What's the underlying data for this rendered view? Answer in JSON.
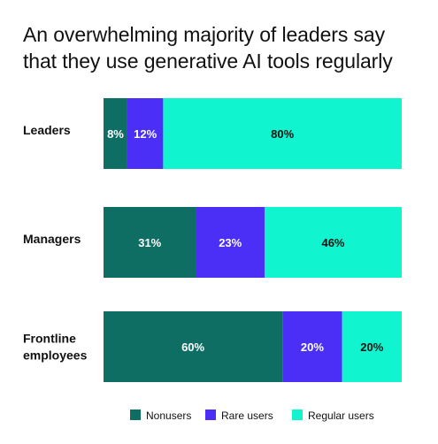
{
  "chart_data": {
    "type": "bar",
    "orientation": "horizontal",
    "stacked": true,
    "title": "An overwhelming majority of leaders say that they use generative AI tools regularly",
    "categories": [
      [
        "Leaders"
      ],
      [
        "Managers"
      ],
      [
        "Frontline",
        "employees"
      ]
    ],
    "series": [
      {
        "name": "Nonusers",
        "color": "#0f6e64",
        "label_color": "#ffffff",
        "values": [
          8,
          31,
          60
        ],
        "labels": [
          "8%",
          "31%",
          "60%"
        ]
      },
      {
        "name": "Rare users",
        "color": "#4b2ff7",
        "label_color": "#ffffff",
        "values": [
          12,
          23,
          20
        ],
        "labels": [
          "12%",
          "23%",
          "20%"
        ]
      },
      {
        "name": "Regular users",
        "color": "#10f5d0",
        "label_color": "#111111",
        "values": [
          80,
          46,
          20
        ],
        "labels": [
          "80%",
          "46%",
          "20%"
        ]
      }
    ],
    "xlim": [
      0,
      100
    ],
    "grid": false,
    "legend_position": "bottom-center"
  }
}
